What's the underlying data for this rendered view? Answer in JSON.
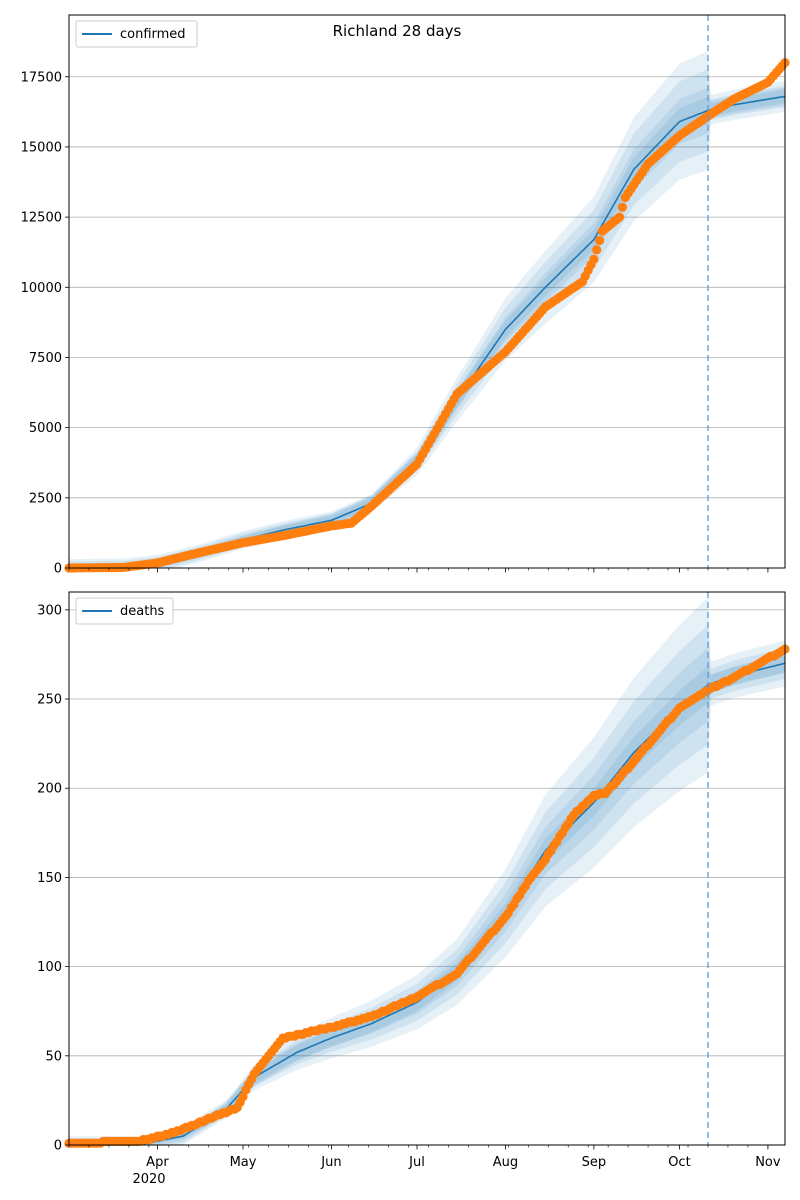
{
  "figure": {
    "title": "Richland 28 days"
  },
  "colors": {
    "model_line": "#1f77b4",
    "band": "#1f77b4",
    "observed": "#ff7f0e",
    "grid": "#b0b0b0",
    "forecast_line": "#5b9bd5"
  },
  "x_axis": {
    "start_date": "2020-03-01",
    "end_date": "2020-11-07",
    "forecast_date": "2020-10-11",
    "month_ticks": [
      {
        "date": "2020-04-01",
        "label": "Apr"
      },
      {
        "date": "2020-05-01",
        "label": "May"
      },
      {
        "date": "2020-06-01",
        "label": "Jun"
      },
      {
        "date": "2020-07-01",
        "label": "Jul"
      },
      {
        "date": "2020-08-01",
        "label": "Aug"
      },
      {
        "date": "2020-09-01",
        "label": "Sep"
      },
      {
        "date": "2020-10-01",
        "label": "Oct"
      },
      {
        "date": "2020-11-01",
        "label": "Nov"
      }
    ],
    "year_label": "2020"
  },
  "chart_data": [
    {
      "type": "line",
      "legend": "confirmed",
      "legend_position": "top-left",
      "grid": "horizontal",
      "ylim": [
        0,
        19700
      ],
      "yticks": [
        0,
        2500,
        5000,
        7500,
        10000,
        12500,
        15000,
        17500
      ],
      "model": {
        "x": [
          "2020-03-01",
          "2020-03-20",
          "2020-04-01",
          "2020-04-15",
          "2020-05-01",
          "2020-05-15",
          "2020-06-01",
          "2020-06-15",
          "2020-07-01",
          "2020-07-15",
          "2020-08-01",
          "2020-08-15",
          "2020-09-01",
          "2020-09-15",
          "2020-10-01",
          "2020-10-11",
          "2020-10-20",
          "2020-11-07"
        ],
        "y": [
          0,
          20,
          150,
          500,
          1000,
          1350,
          1700,
          2300,
          3800,
          6000,
          8500,
          10000,
          11700,
          14200,
          15900,
          16300,
          16500,
          16800
        ],
        "band_halfwidth_pct": [
          3,
          5,
          9,
          13
        ]
      },
      "observed": {
        "x": [
          "2020-03-01",
          "2020-03-20",
          "2020-04-01",
          "2020-04-15",
          "2020-05-01",
          "2020-05-15",
          "2020-06-01",
          "2020-06-08",
          "2020-06-15",
          "2020-07-01",
          "2020-07-15",
          "2020-08-01",
          "2020-08-15",
          "2020-08-28",
          "2020-09-01",
          "2020-09-04",
          "2020-09-10",
          "2020-09-12",
          "2020-09-20",
          "2020-10-01",
          "2020-10-11",
          "2020-10-20",
          "2020-11-01",
          "2020-11-07"
        ],
        "y": [
          0,
          20,
          180,
          530,
          900,
          1150,
          1500,
          1600,
          2200,
          3700,
          6200,
          7700,
          9300,
          10200,
          11000,
          12000,
          12500,
          13200,
          14400,
          15400,
          16100,
          16700,
          17300,
          18000
        ]
      }
    },
    {
      "type": "line",
      "legend": "deaths",
      "legend_position": "top-left",
      "grid": "horizontal",
      "ylim": [
        0,
        310
      ],
      "yticks": [
        0,
        50,
        100,
        150,
        200,
        250,
        300
      ],
      "model": {
        "x": [
          "2020-03-01",
          "2020-03-25",
          "2020-04-10",
          "2020-04-25",
          "2020-05-05",
          "2020-05-20",
          "2020-06-01",
          "2020-06-15",
          "2020-07-01",
          "2020-07-15",
          "2020-08-01",
          "2020-08-15",
          "2020-09-01",
          "2020-09-15",
          "2020-10-01",
          "2020-10-11",
          "2020-10-20",
          "2020-11-07"
        ],
        "y": [
          0,
          0,
          5,
          20,
          38,
          52,
          60,
          68,
          80,
          97,
          130,
          165,
          192,
          220,
          245,
          258,
          263,
          270
        ],
        "band_halfwidth_pct": [
          4,
          8,
          13,
          19
        ]
      },
      "observed": {
        "x": [
          "2020-03-01",
          "2020-03-25",
          "2020-04-05",
          "2020-04-15",
          "2020-04-29",
          "2020-05-05",
          "2020-05-10",
          "2020-05-15",
          "2020-06-01",
          "2020-06-15",
          "2020-07-01",
          "2020-07-15",
          "2020-08-01",
          "2020-08-10",
          "2020-08-15",
          "2020-08-25",
          "2020-09-01",
          "2020-09-05",
          "2020-09-15",
          "2020-10-01",
          "2020-10-11",
          "2020-10-20",
          "2020-11-07"
        ],
        "y": [
          1,
          2,
          6,
          12,
          21,
          40,
          50,
          60,
          66,
          72,
          83,
          96,
          128,
          150,
          160,
          185,
          196,
          197,
          215,
          245,
          255,
          262,
          278
        ]
      }
    }
  ]
}
